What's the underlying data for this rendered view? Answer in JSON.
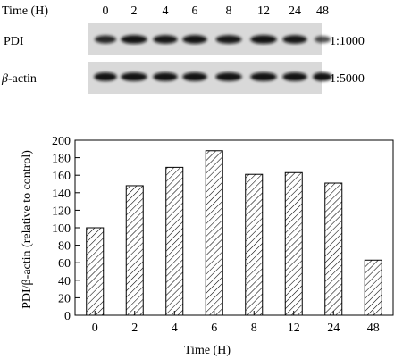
{
  "blot": {
    "header_label": "Time (H)",
    "lanes": [
      "0",
      "2",
      "4",
      "6",
      "8",
      "12",
      "24",
      "48"
    ],
    "rows": [
      {
        "label": "PDI",
        "label_italic_prefix": "",
        "dilution": "1:1000",
        "band_intensity": [
          0.8,
          0.95,
          0.92,
          0.94,
          0.9,
          0.95,
          0.92,
          0.55
        ]
      },
      {
        "label": "-actin",
        "label_italic_prefix": "β",
        "dilution": "1:5000",
        "band_intensity": [
          0.95,
          0.95,
          0.95,
          0.95,
          0.95,
          0.95,
          0.95,
          0.95
        ]
      }
    ],
    "colors": {
      "membrane": "#d9d9d9",
      "band": "#111111"
    }
  },
  "chart_data": {
    "type": "bar",
    "categories": [
      "0",
      "2",
      "4",
      "6",
      "8",
      "12",
      "24",
      "48"
    ],
    "values": [
      100,
      148,
      169,
      188,
      161,
      163,
      151,
      63
    ],
    "xlabel": "Time (H)",
    "ylabel": "PDI/β-actin (relative to control)",
    "ylim": [
      0,
      200
    ],
    "yticks": [
      0,
      20,
      40,
      60,
      80,
      100,
      120,
      140,
      160,
      180,
      200
    ],
    "bar_fill": "diagonal-hatch",
    "grid": false,
    "legend": "none"
  }
}
